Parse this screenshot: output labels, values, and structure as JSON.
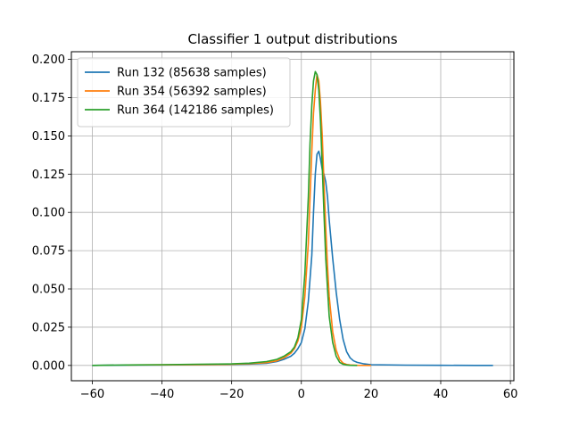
{
  "chart_data": {
    "type": "line",
    "title": "Classifier 1 output distributions",
    "xlabel": "",
    "ylabel": "",
    "xlim": [
      -66,
      61
    ],
    "ylim": [
      -0.01,
      0.205
    ],
    "x_ticks": [
      -60,
      -40,
      -20,
      0,
      20,
      40,
      60
    ],
    "y_ticks": [
      0.0,
      0.025,
      0.05,
      0.075,
      0.1,
      0.125,
      0.15,
      0.175,
      0.2
    ],
    "x_tick_labels": [
      "−60",
      "−40",
      "−20",
      "0",
      "20",
      "40",
      "60"
    ],
    "y_tick_labels": [
      "0.000",
      "0.025",
      "0.050",
      "0.075",
      "0.100",
      "0.125",
      "0.150",
      "0.175",
      "0.200"
    ],
    "grid": true,
    "legend_position": "top-left",
    "series": [
      {
        "name": "Run 132 (85638 samples)",
        "color": "#1f77b4",
        "x": [
          -60,
          -50,
          -40,
          -30,
          -20,
          -15,
          -10,
          -7,
          -5,
          -3,
          -2,
          -1,
          0,
          1,
          2,
          3,
          3.5,
          4,
          4.5,
          5,
          5.5,
          6,
          6.5,
          7,
          7.5,
          8,
          9,
          10,
          11,
          12,
          13,
          14,
          15,
          16,
          18,
          20,
          30,
          40,
          50,
          55
        ],
        "values": [
          0.0,
          0.0002,
          0.0003,
          0.0005,
          0.0007,
          0.0009,
          0.0014,
          0.0025,
          0.004,
          0.006,
          0.008,
          0.011,
          0.015,
          0.024,
          0.042,
          0.072,
          0.1,
          0.125,
          0.138,
          0.14,
          0.135,
          0.128,
          0.125,
          0.12,
          0.11,
          0.095,
          0.07,
          0.048,
          0.03,
          0.017,
          0.009,
          0.005,
          0.003,
          0.002,
          0.001,
          0.0005,
          0.0002,
          0.0001,
          0.0,
          0.0
        ]
      },
      {
        "name": "Run 354 (56392 samples)",
        "color": "#ff7f0e",
        "x": [
          -50,
          -30,
          -20,
          -15,
          -10,
          -7,
          -5,
          -3,
          -2,
          -1,
          0,
          1,
          2,
          2.5,
          3,
          3.5,
          4,
          4.5,
          5,
          5.5,
          6,
          6.5,
          7,
          7.5,
          8,
          9,
          10,
          11,
          12,
          13,
          14,
          16,
          20
        ],
        "values": [
          0.0003,
          0.0005,
          0.0008,
          0.0012,
          0.0018,
          0.003,
          0.005,
          0.008,
          0.011,
          0.016,
          0.025,
          0.045,
          0.08,
          0.11,
          0.14,
          0.165,
          0.18,
          0.19,
          0.186,
          0.172,
          0.15,
          0.12,
          0.09,
          0.065,
          0.045,
          0.022,
          0.01,
          0.004,
          0.0015,
          0.0006,
          0.0003,
          0.0001,
          0.0
        ]
      },
      {
        "name": "Run 364 (142186 samples)",
        "color": "#2ca02c",
        "x": [
          -60,
          -50,
          -40,
          -30,
          -20,
          -15,
          -10,
          -7,
          -5,
          -3,
          -2,
          -1,
          0,
          1,
          2,
          2.5,
          3,
          3.5,
          4,
          4.5,
          5,
          5.5,
          6,
          6.5,
          7,
          7.5,
          8,
          9,
          10,
          11,
          12,
          13,
          14,
          16
        ],
        "values": [
          0.0,
          0.0003,
          0.0005,
          0.0008,
          0.001,
          0.0015,
          0.0025,
          0.004,
          0.006,
          0.009,
          0.012,
          0.018,
          0.03,
          0.06,
          0.11,
          0.145,
          0.17,
          0.186,
          0.192,
          0.19,
          0.18,
          0.16,
          0.13,
          0.1,
          0.07,
          0.05,
          0.032,
          0.015,
          0.006,
          0.002,
          0.0008,
          0.0003,
          0.0001,
          0.0
        ]
      }
    ]
  }
}
